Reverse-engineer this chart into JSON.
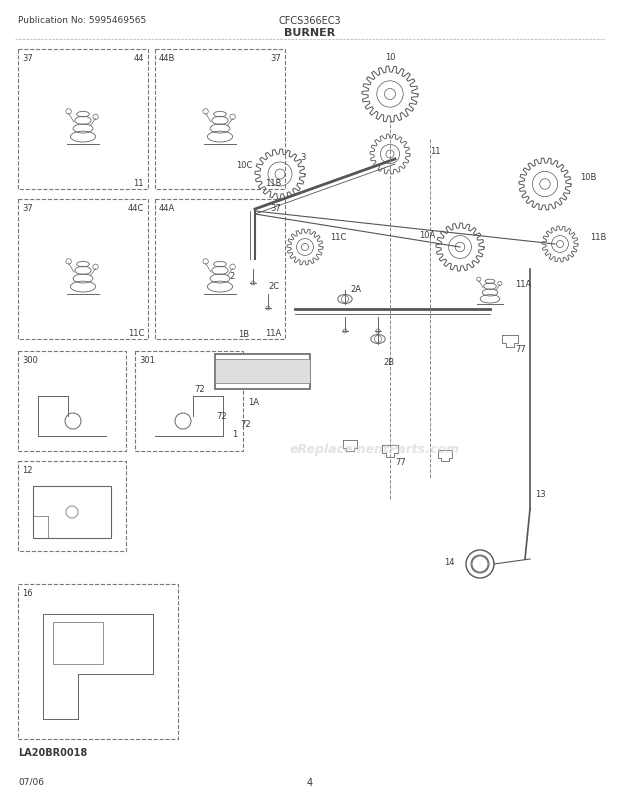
{
  "title": "BURNER",
  "publication": "Publication No: 5995469565",
  "model": "CFCS366EC3",
  "date": "07/06",
  "page": "4",
  "watermark": "eReplacementParts.com",
  "bg_color": "#ffffff",
  "text_color": "#3a3a3a",
  "line_color": "#555555",
  "label_font_size": 6.5,
  "title_font_size": 8,
  "header_font_size": 6.5,
  "footer_label": "LA20BR0018",
  "fig_w": 6.2,
  "fig_h": 8.03,
  "dpi": 100
}
